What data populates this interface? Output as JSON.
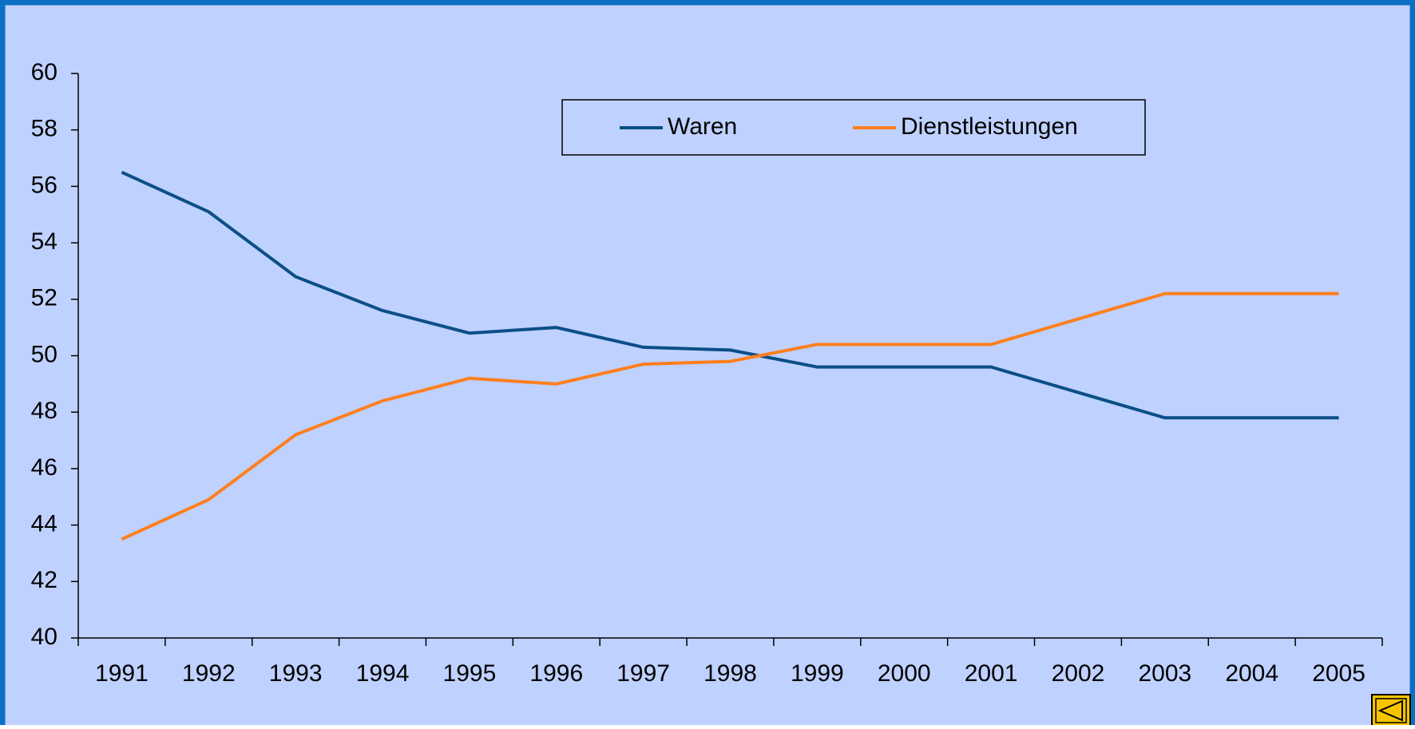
{
  "chart_data": {
    "type": "line",
    "categories": [
      "1991",
      "1992",
      "1993",
      "1994",
      "1995",
      "1996",
      "1997",
      "1998",
      "1999",
      "2000",
      "2001",
      "2002",
      "2003",
      "2004",
      "2005"
    ],
    "series": [
      {
        "name": "Waren",
        "color": "#0b4f86",
        "values": [
          56.5,
          55.1,
          52.8,
          51.6,
          50.8,
          51.0,
          50.3,
          50.2,
          49.6,
          49.6,
          49.6,
          48.7,
          47.8,
          47.8,
          47.8
        ]
      },
      {
        "name": "Dienstleistungen",
        "color": "#ff7f1e",
        "values": [
          43.5,
          44.9,
          47.2,
          48.4,
          49.2,
          49.0,
          49.7,
          49.8,
          50.4,
          50.4,
          50.4,
          51.3,
          52.2,
          52.2,
          52.2
        ]
      }
    ],
    "ylim": [
      40,
      60
    ],
    "yticks": [
      40,
      42,
      44,
      46,
      48,
      50,
      52,
      54,
      56,
      58,
      60
    ],
    "legend": "top"
  }
}
